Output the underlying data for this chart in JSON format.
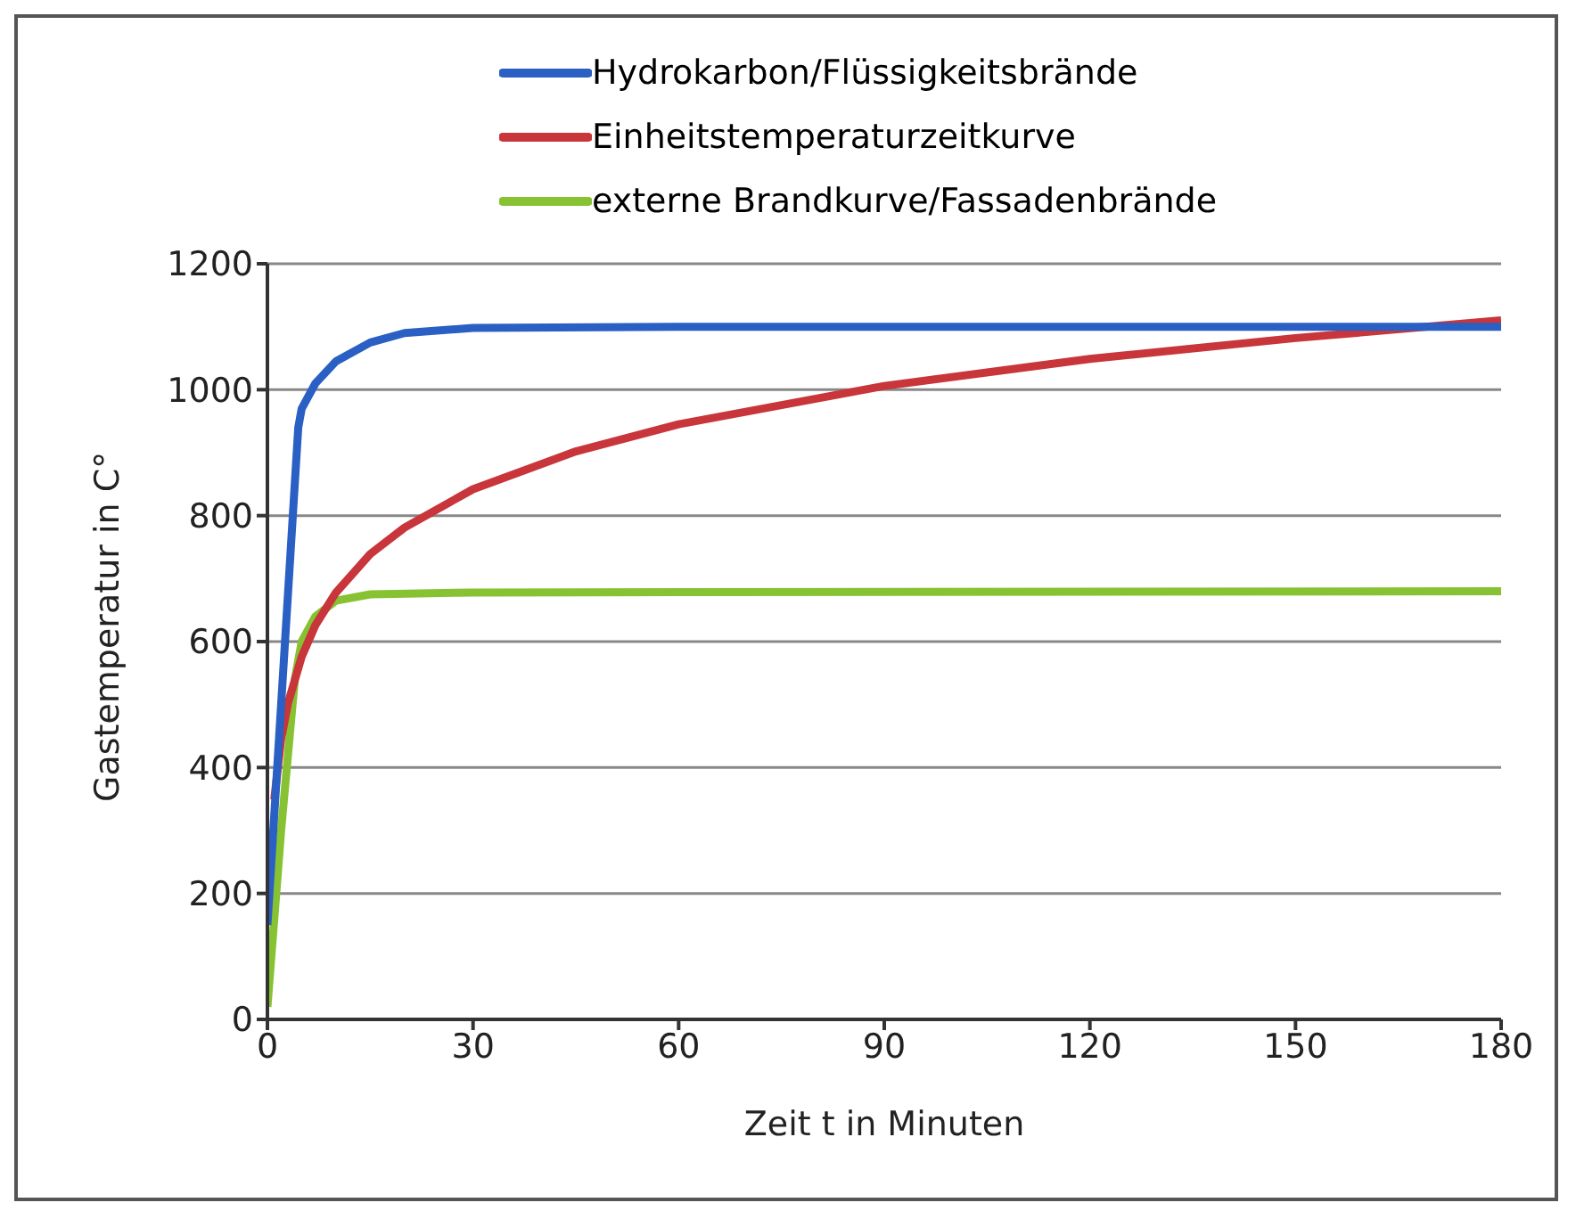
{
  "chart_data": {
    "type": "line",
    "xlabel": "Zeit t in Minuten",
    "ylabel": "Gastemperatur in C°",
    "xlim": [
      0,
      180
    ],
    "xticks": [
      0,
      30,
      60,
      90,
      120,
      150,
      180
    ],
    "ylim": [
      0,
      1200
    ],
    "yticks": [
      0,
      200,
      400,
      600,
      800,
      1000,
      1200
    ],
    "grid": "y",
    "legend": "top",
    "marker": "none",
    "line_style": "solid",
    "series": [
      {
        "name": "Hydrokarbon/Flüssigkeitsbrände",
        "color": "#2a5fc4",
        "x": [
          0,
          2,
          4.5,
          5,
          7,
          10,
          15,
          20,
          30,
          60,
          180
        ],
        "values": [
          150,
          500,
          940,
          970,
          1010,
          1045,
          1075,
          1090,
          1098,
          1100,
          1100
        ]
      },
      {
        "name": "Einheitstemperaturzeitkurve",
        "color": "#c8353a",
        "x": [
          1,
          2,
          3,
          5,
          7,
          10,
          15,
          20,
          30,
          45,
          60,
          90,
          120,
          150,
          180
        ],
        "values": [
          349,
          445,
          502,
          576,
          626,
          678,
          739,
          781,
          842,
          902,
          945,
          1006,
          1049,
          1082,
          1110
        ]
      },
      {
        "name": "externe Brandkurve/Fassadenbrände",
        "color": "#86c232",
        "x": [
          0,
          2,
          4,
          5,
          7,
          10,
          15,
          30,
          180
        ],
        "values": [
          20,
          300,
          540,
          600,
          640,
          665,
          675,
          678,
          680
        ]
      }
    ]
  }
}
